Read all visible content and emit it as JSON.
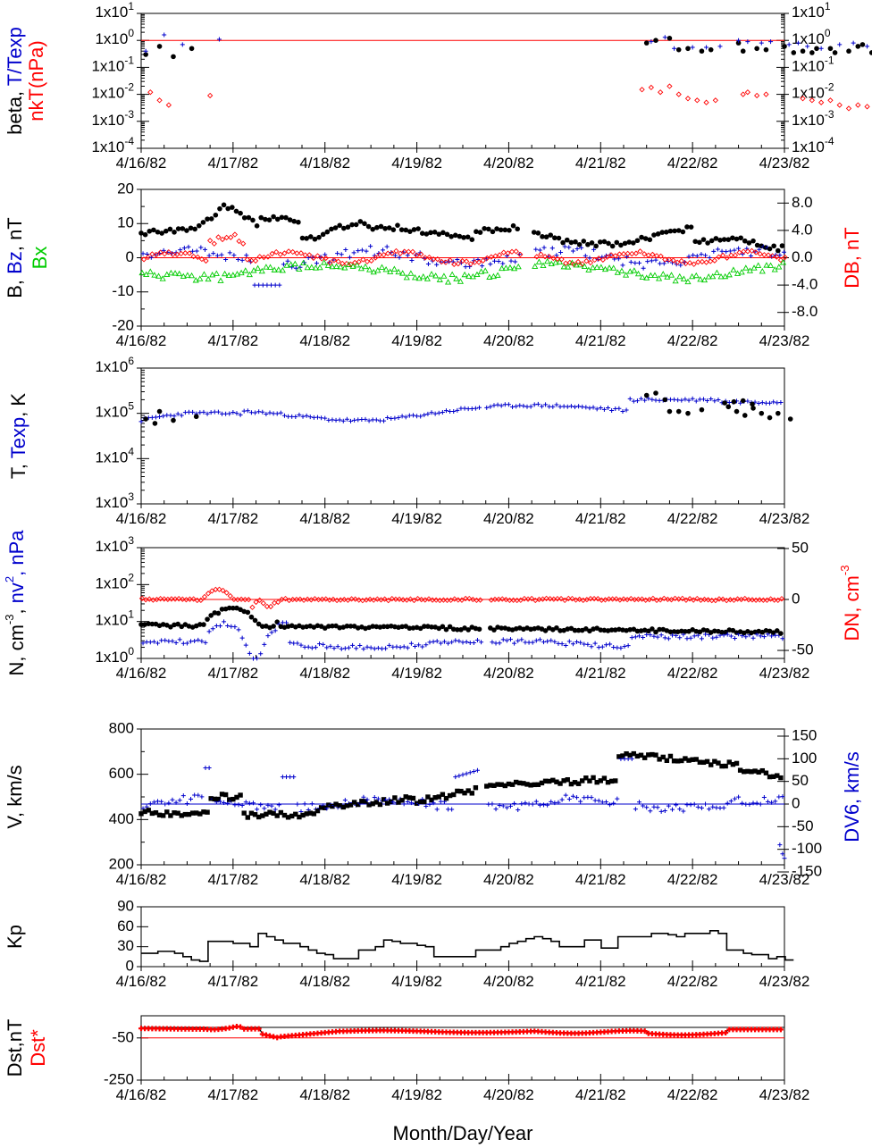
{
  "chart_data": [
    {
      "type": "scatter",
      "panel": "beta",
      "ylabel_left": [
        {
          "text": "beta, ",
          "color": "#000000"
        },
        {
          "text": "T/Texp",
          "color": "#0000cc"
        }
      ],
      "ylabel_left2": [
        {
          "text": "nkT(nPa)",
          "color": "#ff0000"
        }
      ],
      "y_scale": "log",
      "ylim": [
        0.0001,
        10
      ],
      "yticks_left": [
        "1x10^1",
        "1x10^0",
        "1x10^-1",
        "1x10^-2",
        "1x10^-3",
        "1x10^-4"
      ],
      "yticks_right": [
        "1x10^1",
        "1x10^0",
        "1x10^-1",
        "1x10^-2",
        "1x10^-3",
        "1x10^-4"
      ],
      "ref_lines": [
        {
          "y": 1,
          "color": "#ff0000"
        }
      ],
      "series": [
        {
          "marker": "dot",
          "color": "#000000",
          "points": [
            [
              0.05,
              0.3
            ],
            [
              0.2,
              0.6
            ],
            [
              0.35,
              0.25
            ],
            [
              0.55,
              0.5
            ],
            [
              5.5,
              0.8
            ],
            [
              5.6,
              1.0
            ],
            [
              5.75,
              1.2
            ],
            [
              5.85,
              0.45
            ],
            [
              5.95,
              0.5
            ],
            [
              6.1,
              0.4
            ],
            [
              6.2,
              0.45
            ],
            [
              6.5,
              0.8
            ],
            [
              6.55,
              0.4
            ],
            [
              6.7,
              0.5
            ],
            [
              6.8,
              0.45
            ],
            [
              7.0,
              0.6
            ],
            [
              7.1,
              0.35
            ],
            [
              7.2,
              0.4
            ],
            [
              7.3,
              0.35
            ],
            [
              7.35,
              0.5
            ],
            [
              7.5,
              0.5
            ],
            [
              7.55,
              0.35
            ],
            [
              7.7,
              0.4
            ],
            [
              7.8,
              0.6
            ],
            [
              7.85,
              0.7
            ],
            [
              7.95,
              0.35
            ]
          ]
        },
        {
          "marker": "plus",
          "color": "#0000cc",
          "points": [
            [
              0.05,
              0.4
            ],
            [
              0.25,
              1.6
            ],
            [
              0.45,
              0.7
            ],
            [
              0.85,
              1.1
            ],
            [
              5.55,
              0.9
            ],
            [
              5.7,
              1.3
            ],
            [
              5.8,
              0.5
            ],
            [
              6.0,
              0.55
            ],
            [
              6.15,
              0.55
            ],
            [
              6.3,
              0.6
            ],
            [
              6.5,
              1.0
            ],
            [
              6.6,
              0.9
            ],
            [
              6.75,
              0.8
            ],
            [
              6.85,
              0.9
            ],
            [
              7.05,
              0.7
            ],
            [
              7.15,
              0.8
            ],
            [
              7.25,
              0.6
            ],
            [
              7.4,
              0.5
            ],
            [
              7.6,
              0.7
            ],
            [
              7.75,
              0.8
            ],
            [
              7.9,
              0.6
            ]
          ]
        },
        {
          "marker": "diamond",
          "color": "#ff0000",
          "points": [
            [
              0.1,
              0.012
            ],
            [
              0.2,
              0.006
            ],
            [
              0.3,
              0.004
            ],
            [
              0.75,
              0.009
            ],
            [
              5.45,
              0.015
            ],
            [
              5.55,
              0.018
            ],
            [
              5.65,
              0.012
            ],
            [
              5.75,
              0.02
            ],
            [
              5.85,
              0.01
            ],
            [
              5.95,
              0.007
            ],
            [
              6.05,
              0.006
            ],
            [
              6.15,
              0.005
            ],
            [
              6.25,
              0.006
            ],
            [
              6.55,
              0.01
            ],
            [
              6.6,
              0.012
            ],
            [
              6.7,
              0.009
            ],
            [
              6.8,
              0.01
            ],
            [
              7.2,
              0.007
            ],
            [
              7.3,
              0.006
            ],
            [
              7.4,
              0.005
            ],
            [
              7.5,
              0.006
            ],
            [
              7.6,
              0.004
            ],
            [
              7.7,
              0.003
            ],
            [
              7.8,
              0.004
            ],
            [
              7.9,
              0.0035
            ]
          ]
        }
      ]
    },
    {
      "type": "scatter",
      "panel": "B",
      "ylabel_left": [
        {
          "text": "B, ",
          "color": "#000000"
        },
        {
          "text": "Bz",
          "color": "#0000cc"
        },
        {
          "text": ", nT",
          "color": "#000000"
        }
      ],
      "ylabel_left2": [
        {
          "text": "Bx",
          "color": "#00cc00"
        }
      ],
      "ylabel_right": [
        {
          "text": "DB, nT",
          "color": "#ff0000"
        }
      ],
      "ylim": [
        -20,
        20
      ],
      "yticks_left": [
        "20",
        "10",
        "0",
        "-10",
        "-20"
      ],
      "yticks_right": [
        "8.0",
        "4.0",
        "0.0",
        "-4.0",
        "-8.0"
      ],
      "ref_lines": [
        {
          "y": 0,
          "color": "#ff0000"
        }
      ]
    },
    {
      "type": "scatter",
      "panel": "T",
      "ylabel_left": [
        {
          "text": "T, ",
          "color": "#000000"
        },
        {
          "text": "Texp",
          "color": "#0000cc"
        },
        {
          "text": ", K",
          "color": "#000000"
        }
      ],
      "y_scale": "log",
      "ylim": [
        1000,
        1000000
      ],
      "yticks_left": [
        "1x10^6",
        "1x10^5",
        "1x10^4",
        "1x10^3"
      ]
    },
    {
      "type": "scatter",
      "panel": "N",
      "ylabel_left": [
        {
          "text": "N, cm",
          "color": "#000000"
        },
        {
          "text": "-3",
          "color": "#000000",
          "sup": true
        },
        {
          "text": ", ",
          "color": "#000000"
        },
        {
          "text": "nv",
          "color": "#0000cc"
        },
        {
          "text": "2",
          "color": "#0000cc",
          "sup": true
        },
        {
          "text": ", nPa",
          "color": "#0000cc"
        }
      ],
      "ylabel_right": [
        {
          "text": "DN, cm",
          "color": "#ff0000"
        },
        {
          "text": "-3",
          "color": "#ff0000",
          "sup": true
        }
      ],
      "y_scale": "log",
      "ylim": [
        1,
        1000
      ],
      "yticks_left": [
        "1x10^3",
        "1x10^2",
        "1x10^1",
        "1x10^0"
      ],
      "yticks_right": [
        "50",
        "0",
        "-50"
      ],
      "ref_lines": [
        {
          "y_right": 0,
          "color": "#ff0000"
        }
      ]
    },
    {
      "type": "scatter",
      "panel": "V",
      "ylabel_left": [
        {
          "text": "V, km/s",
          "color": "#000000"
        }
      ],
      "ylabel_right": [
        {
          "text": "DV6, km/s",
          "color": "#0000cc"
        }
      ],
      "ylim": [
        200,
        800
      ],
      "yticks_left": [
        "800",
        "600",
        "400",
        "200"
      ],
      "yticks_right": [
        "150",
        "100",
        "50",
        "0",
        "-50",
        "-100",
        "-150"
      ],
      "ref_lines": [
        {
          "y_right": 0,
          "color": "#0000cc"
        }
      ]
    },
    {
      "type": "line",
      "panel": "Kp",
      "ylabel_left": [
        {
          "text": "Kp",
          "color": "#000000"
        }
      ],
      "ylim": [
        0,
        90
      ],
      "yticks_left": [
        "90",
        "60",
        "30",
        "0"
      ]
    },
    {
      "type": "line",
      "panel": "Dst",
      "ylabel_left": [
        {
          "text": "Dst,nT",
          "color": "#000000"
        }
      ],
      "ylabel_left2": [
        {
          "text": "Dst*",
          "color": "#ff0000"
        }
      ],
      "ylim": [
        -250,
        50
      ],
      "yticks_left": [
        "-50",
        "-250"
      ],
      "ref_lines": [
        {
          "y": -50,
          "color": "#ff0000"
        },
        {
          "y": 0,
          "color": "#000000"
        }
      ]
    }
  ],
  "x_axis": {
    "start": "4/16/82",
    "end": "4/23/82",
    "ticks": [
      "4/16/82",
      "4/17/82",
      "4/18/82",
      "4/19/82",
      "4/20/82",
      "4/21/82",
      "4/22/82",
      "4/23/82"
    ],
    "title": "Month/Day/Year"
  },
  "kp_values": [
    20,
    20,
    23,
    23,
    20,
    15,
    10,
    8,
    38,
    38,
    38,
    35,
    35,
    30,
    50,
    45,
    40,
    35,
    35,
    30,
    25,
    20,
    18,
    12,
    12,
    12,
    25,
    25,
    30,
    40,
    38,
    35,
    35,
    32,
    30,
    15,
    15,
    15,
    15,
    15,
    25,
    25,
    25,
    30,
    35,
    38,
    42,
    45,
    42,
    38,
    30,
    30,
    30,
    40,
    40,
    28,
    28,
    45,
    45,
    45,
    45,
    50,
    50,
    48,
    45,
    50,
    50,
    50,
    54,
    50,
    25,
    25,
    20,
    18,
    18,
    12,
    15,
    10
  ]
}
